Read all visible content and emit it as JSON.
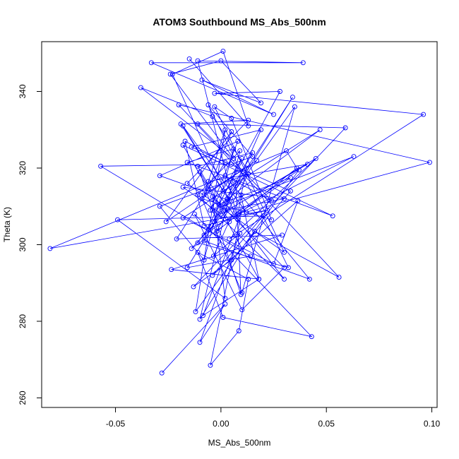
{
  "chart_data": {
    "type": "line",
    "title": "ATOM3 Southbound MS_Abs_500nm",
    "xlabel": "MS_Abs_500nm",
    "ylabel": "Theta (K)",
    "xlim": [
      -0.085,
      0.1025
    ],
    "ylim": [
      257.5,
      353
    ],
    "x_ticks": [
      -0.05,
      0.0,
      0.05,
      0.1
    ],
    "x_tick_labels": [
      "-0.05",
      "0.00",
      "0.05",
      "0.10"
    ],
    "y_ticks": [
      260,
      280,
      300,
      320,
      340
    ],
    "y_tick_labels": [
      "260",
      "280",
      "300",
      "320",
      "340"
    ],
    "grid": false,
    "marker": "open-circle",
    "colors": {
      "series": "#0000ff",
      "axis": "#000000"
    },
    "series": [
      {
        "x": [
          -0.028,
          0.002,
          -0.01,
          0.009,
          -0.0035,
          0.0095,
          0.018,
          -0.0085,
          0.01,
          -0.005,
          0.0085,
          0.013,
          -0.011,
          0.001,
          0.043,
          -0.0125,
          0.01,
          0.03,
          -0.004,
          0.002,
          -0.049,
          0.02,
          -0.004,
          0.0365,
          0.025,
          -0.018,
          0.007,
          0.0095,
          -0.01,
          0.018,
          -0.0235,
          0.029,
          -0.021,
          0.002,
          -0.017,
          -0.008,
          0.022,
          -0.081,
          0.031,
          0.036,
          -0.002,
          0.013,
          -0.029,
          -0.008,
          0.006,
          -0.016,
          0.053,
          -0.018,
          -0.006,
          0.005,
          -0.026,
          0.017,
          -0.008,
          0.002,
          -0.012,
          0.037,
          -0.008,
          0.01,
          -0.005,
          0.008,
          -0.029,
          0.004,
          -0.018,
          0.012,
          0.099,
          -0.02,
          0.056,
          0.016,
          -0.01,
          0.009,
          -0.011,
          0.03,
          -0.006,
          0.041,
          0.003,
          -0.014,
          0.004,
          -0.011,
          0.015,
          -0.006,
          0.063,
          -0.004,
          0.047,
          0.001,
          -0.019,
          0.013,
          -0.016,
          0.03,
          -0.003,
          0.005,
          0.024,
          -0.009,
          0.01,
          0.035,
          -0.011,
          0.032,
          -0.006,
          0.015,
          0.005,
          -0.057,
          0.014,
          -0.016,
          0.034,
          0.003,
          -0.008,
          0.042,
          0.002,
          0.024,
          -0.011,
          0.059,
          -0.013,
          0.005,
          0.033,
          -0.014,
          0.019,
          0.002,
          0.03,
          -0.018,
          0.0,
          0.045,
          0.004,
          0.096,
          -0.003,
          0.028,
          -0.001,
          0.033,
          0.008,
          0.012,
          -0.004,
          -0.038,
          0.006,
          -0.024,
          0.0,
          0.019,
          -0.009,
          0.025,
          -0.033,
          0.039,
          -0.011,
          0.008,
          -0.023,
          0.001,
          0.013,
          -0.015
        ],
        "y": [
          266.5,
          284.5,
          274.5,
          303.0,
          297.0,
          313.0,
          291.0,
          281.5,
          309.0,
          268.5,
          277.5,
          291.0,
          298.0,
          281.0,
          276.0,
          308.0,
          283.0,
          294.0,
          312.5,
          286.0,
          306.5,
          307.5,
          292.0,
          311.5,
          295.0,
          307.0,
          316.0,
          287.0,
          319.0,
          291.0,
          293.5,
          302.5,
          301.5,
          321.5,
          327.0,
          305.0,
          309.0,
          299.0,
          324.5,
          320.0,
          303.5,
          318.5,
          310.0,
          296.0,
          325.0,
          321.5,
          307.5,
          326.0,
          314.5,
          329.5,
          306.0,
          322.0,
          313.0,
          330.0,
          282.5,
          319.5,
          302.5,
          322.5,
          309.0,
          327.0,
          318.0,
          311.5,
          331.0,
          308.5,
          321.5,
          336.5,
          291.5,
          303.5,
          280.5,
          324.5,
          313.0,
          291.0,
          316.5,
          321.0,
          309.0,
          299.0,
          306.0,
          320.5,
          324.0,
          304.0,
          323.0,
          309.0,
          330.0,
          314.0,
          331.5,
          332.5,
          316.0,
          298.0,
          336.0,
          333.0,
          306.5,
          312.0,
          287.5,
          336.0,
          300.5,
          294.0,
          336.5,
          323.0,
          321.0,
          320.5,
          297.0,
          294.0,
          338.5,
          312.0,
          301.0,
          291.0,
          318.0,
          311.5,
          331.5,
          330.5,
          289.0,
          296.0,
          314.0,
          325.5,
          330.0,
          309.0,
          312.0,
          315.0,
          308.0,
          322.5,
          301.5,
          334.0,
          339.5,
          340.0,
          310.5,
          317.5,
          308.0,
          320.0,
          333.5,
          341.0,
          322.5,
          344.5,
          348.0,
          337.0,
          343.0,
          334.0,
          347.5,
          347.5,
          348.0,
          306.5,
          344.5,
          350.5,
          331.0,
          348.5
        ]
      }
    ]
  }
}
